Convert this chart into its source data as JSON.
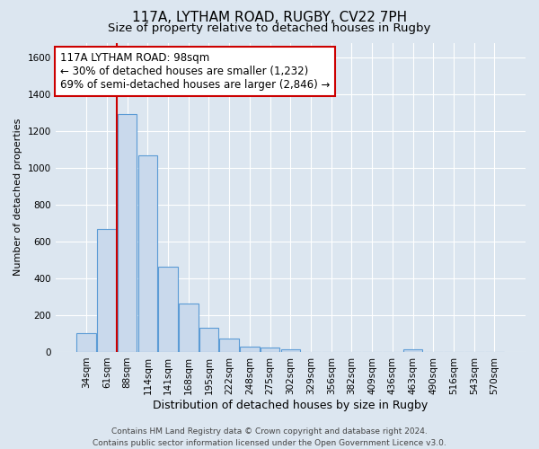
{
  "title": "117A, LYTHAM ROAD, RUGBY, CV22 7PH",
  "subtitle": "Size of property relative to detached houses in Rugby",
  "xlabel": "Distribution of detached houses by size in Rugby",
  "ylabel": "Number of detached properties",
  "bar_labels": [
    "34sqm",
    "61sqm",
    "88sqm",
    "114sqm",
    "141sqm",
    "168sqm",
    "195sqm",
    "222sqm",
    "248sqm",
    "275sqm",
    "302sqm",
    "329sqm",
    "356sqm",
    "382sqm",
    "409sqm",
    "436sqm",
    "463sqm",
    "490sqm",
    "516sqm",
    "543sqm",
    "570sqm"
  ],
  "bar_values": [
    100,
    670,
    1290,
    1070,
    465,
    265,
    130,
    75,
    30,
    25,
    15,
    0,
    0,
    0,
    0,
    0,
    15,
    0,
    0,
    0,
    0
  ],
  "bar_color": "#c9d9ec",
  "bar_edge_color": "#5b9bd5",
  "red_line_x": 1.5,
  "red_line_color": "#cc0000",
  "annotation_line1": "117A LYTHAM ROAD: 98sqm",
  "annotation_line2": "← 30% of detached houses are smaller (1,232)",
  "annotation_line3": "69% of semi-detached houses are larger (2,846) →",
  "annotation_box_color": "#ffffff",
  "annotation_box_edge": "#cc0000",
  "ylim": [
    0,
    1680
  ],
  "yticks": [
    0,
    200,
    400,
    600,
    800,
    1000,
    1200,
    1400,
    1600
  ],
  "background_color": "#dce6f0",
  "plot_bg_color": "#dce6f0",
  "grid_color": "#ffffff",
  "footer_line1": "Contains HM Land Registry data © Crown copyright and database right 2024.",
  "footer_line2": "Contains public sector information licensed under the Open Government Licence v3.0.",
  "title_fontsize": 11,
  "subtitle_fontsize": 9.5,
  "xlabel_fontsize": 9,
  "ylabel_fontsize": 8,
  "tick_fontsize": 7.5,
  "annotation_fontsize": 8.5,
  "footer_fontsize": 6.5
}
